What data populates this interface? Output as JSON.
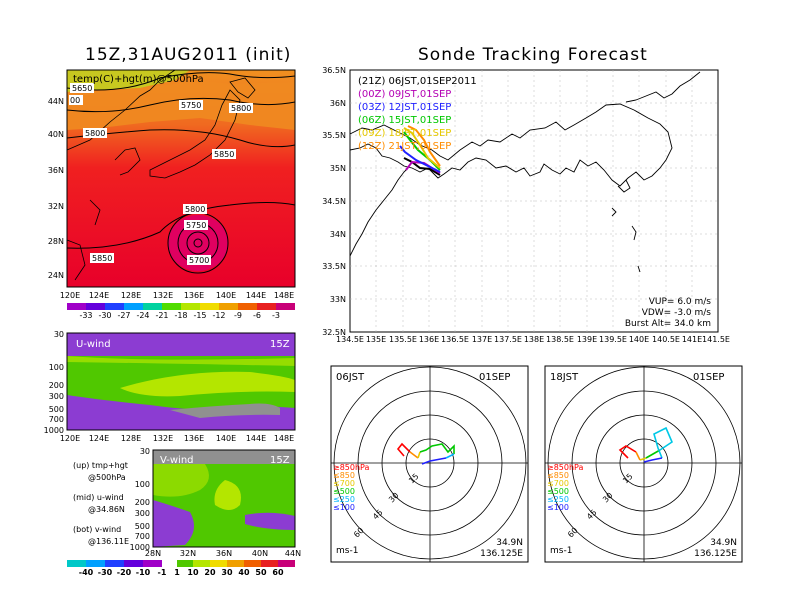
{
  "left_title": "15Z,31AUG2011 (init)",
  "right_title": "Sonde Tracking Forecast",
  "map500": {
    "label": "temp(C)+hgt(m)@500hPa",
    "xticks": [
      "120E",
      "124E",
      "128E",
      "132E",
      "136E",
      "140E",
      "144E",
      "148E"
    ],
    "yticks": [
      "44N",
      "40N",
      "36N",
      "32N",
      "28N",
      "24N"
    ],
    "contours": [
      "5650",
      "5750",
      "5800",
      "5800",
      "5850",
      "5800",
      "5750",
      "5700",
      "5850",
      "00"
    ],
    "colorbar_ticks": [
      "-33",
      "-30",
      "-27",
      "-24",
      "-21",
      "-18",
      "-15",
      "-12",
      "-9",
      "-6",
      "-3"
    ]
  },
  "uwind": {
    "label": "U-wind",
    "time": "15Z",
    "yticks": [
      "30",
      "100",
      "200",
      "300",
      "500",
      "700",
      "1000"
    ],
    "xticks": [
      "120E",
      "124E",
      "128E",
      "132E",
      "136E",
      "140E",
      "144E",
      "148E"
    ]
  },
  "vwind": {
    "label": "V-wind",
    "time": "15Z",
    "yticks": [
      "30",
      "100",
      "200",
      "300",
      "500",
      "700",
      "1000"
    ],
    "xticks": [
      "28N",
      "32N",
      "36N",
      "40N",
      "44N"
    ],
    "colorbar_ticks": [
      "-40",
      "-30",
      "-20",
      "-10",
      "-1",
      "1",
      "10",
      "20",
      "30",
      "40",
      "50",
      "60"
    ]
  },
  "legend_notes": {
    "up_1": "(up) tmp+hgt",
    "up_2": "@500hPa",
    "mid_1": "(mid) u-wind",
    "mid_2": "@34.86N",
    "bot_1": "(bot) v-wind",
    "bot_2": "@136.11E"
  },
  "track": {
    "yticks": [
      "36.5N",
      "36N",
      "35.5N",
      "35N",
      "34.5N",
      "34N",
      "33.5N",
      "33N",
      "32.5N"
    ],
    "xticks": [
      "134.5E",
      "135E",
      "135.5E",
      "136E",
      "136.5E",
      "137E",
      "137.5E",
      "138E",
      "138.5E",
      "139E",
      "139.5E",
      "140E",
      "140.5E",
      "141E",
      "141.5E"
    ],
    "launches": [
      {
        "label": "(21Z)  06JST,01SEP2011",
        "color": "#000000"
      },
      {
        "label": "(00Z)  09JST,01SEP",
        "color": "#b400b4"
      },
      {
        "label": "(03Z)  12JST,01SEP",
        "color": "#2020ff"
      },
      {
        "label": "(06Z)  15JST,01SEP",
        "color": "#00c800"
      },
      {
        "label": "(09Z)  18JST,01SEP",
        "color": "#e6c800"
      },
      {
        "label": "(12Z)  21JST,01SEP",
        "color": "#ff8c00"
      }
    ],
    "vup": "VUP=  6.0  m/s",
    "vdw": "VDW=  -3.0  m/s",
    "burst": "Burst Alt=  34.0  km"
  },
  "hodo1": {
    "time": "06JST",
    "date": "01SEP",
    "rings": [
      "15",
      "30",
      "45",
      "60"
    ],
    "levels": [
      "≥850hPa",
      "≤850",
      "≤700",
      "≤500",
      "≤250",
      "≤100"
    ],
    "unit": "ms-1",
    "lat": "34.9N",
    "lon": "136.125E"
  },
  "hodo2": {
    "time": "18JST",
    "date": "01SEP",
    "rings": [
      "15",
      "30",
      "45",
      "60"
    ],
    "levels": [
      "≥850hPa",
      "≤850",
      "≤700",
      "≤500",
      "≤250",
      "≤100"
    ],
    "unit": "ms-1",
    "lat": "34.9N",
    "lon": "136.125E"
  },
  "colors": {
    "level_colors": [
      "#ff0000",
      "#ff8c00",
      "#e6c800",
      "#00c800",
      "#00b4ff",
      "#2020ff"
    ]
  }
}
